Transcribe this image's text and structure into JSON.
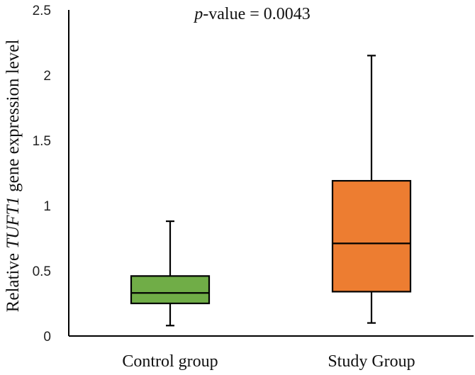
{
  "chart_data": {
    "type": "boxplot",
    "title": "",
    "annotation": {
      "prefix": "p",
      "text": "-value = 0.0043"
    },
    "xlabel": "",
    "ylabel": {
      "before": "Relative ",
      "gene": "TUFT1",
      "after": " gene expression level"
    },
    "ylim": [
      0,
      2.5
    ],
    "yticks": [
      "0",
      "0.5",
      "1",
      "1.5",
      "2",
      "2.5"
    ],
    "ytick_values": [
      0,
      0.5,
      1,
      1.5,
      2,
      2.5
    ],
    "categories": [
      "Control group",
      "Study Group"
    ],
    "boxes": [
      {
        "name": "Control group",
        "min": 0.08,
        "q1": 0.25,
        "median": 0.33,
        "q3": 0.46,
        "max": 0.88,
        "color": "#70ad47"
      },
      {
        "name": "Study Group",
        "min": 0.1,
        "q1": 0.34,
        "median": 0.71,
        "q3": 1.19,
        "max": 2.15,
        "color": "#ed7d31"
      }
    ],
    "stroke_color": "#000000"
  }
}
